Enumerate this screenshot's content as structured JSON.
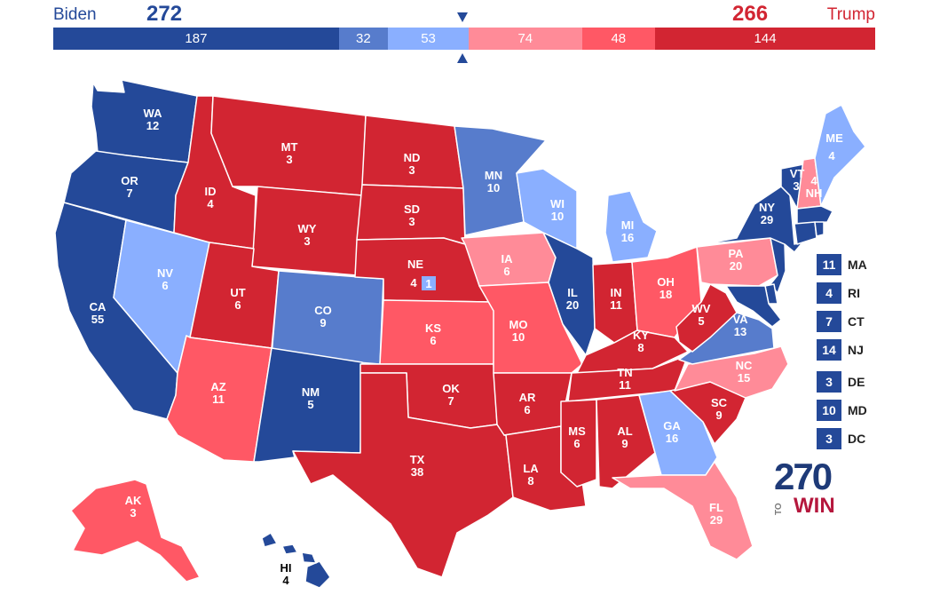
{
  "header": {
    "left_name": "Biden",
    "left_total": "272",
    "right_name": "Trump",
    "right_total": "266"
  },
  "bar_segments": [
    {
      "label": "187",
      "value": 187,
      "color": "#244999"
    },
    {
      "label": "32",
      "value": 32,
      "color": "#577ccc"
    },
    {
      "label": "53",
      "value": 53,
      "color": "#8aafff"
    },
    {
      "label": "74",
      "value": 74,
      "color": "#ff8b98"
    },
    {
      "label": "48",
      "value": 48,
      "color": "#ff5865"
    },
    {
      "label": "144",
      "value": 144,
      "color": "#d22532"
    }
  ],
  "rating_colors": {
    "safe_d": "#244999",
    "likely_d": "#577ccc",
    "lean_d": "#8aafff",
    "lean_r": "#ff8b98",
    "likely_r": "#ff5865",
    "safe_r": "#d22532"
  },
  "states": {
    "WA": {
      "abbr": "WA",
      "ev": "12"
    },
    "OR": {
      "abbr": "OR",
      "ev": "7"
    },
    "CA": {
      "abbr": "CA",
      "ev": "55"
    },
    "NV": {
      "abbr": "NV",
      "ev": "6"
    },
    "ID": {
      "abbr": "ID",
      "ev": "4"
    },
    "MT": {
      "abbr": "MT",
      "ev": "3"
    },
    "WY": {
      "abbr": "WY",
      "ev": "3"
    },
    "UT": {
      "abbr": "UT",
      "ev": "6"
    },
    "AZ": {
      "abbr": "AZ",
      "ev": "11"
    },
    "CO": {
      "abbr": "CO",
      "ev": "9"
    },
    "NM": {
      "abbr": "NM",
      "ev": "5"
    },
    "ND": {
      "abbr": "ND",
      "ev": "3"
    },
    "SD": {
      "abbr": "SD",
      "ev": "3"
    },
    "NE": {
      "abbr": "NE",
      "ev": "4",
      "district_ev": "1"
    },
    "KS": {
      "abbr": "KS",
      "ev": "6"
    },
    "OK": {
      "abbr": "OK",
      "ev": "7"
    },
    "TX": {
      "abbr": "TX",
      "ev": "38"
    },
    "MN": {
      "abbr": "MN",
      "ev": "10"
    },
    "IA": {
      "abbr": "IA",
      "ev": "6"
    },
    "MO": {
      "abbr": "MO",
      "ev": "10"
    },
    "AR": {
      "abbr": "AR",
      "ev": "6"
    },
    "LA": {
      "abbr": "LA",
      "ev": "8"
    },
    "WI": {
      "abbr": "WI",
      "ev": "10"
    },
    "IL": {
      "abbr": "IL",
      "ev": "20"
    },
    "MI": {
      "abbr": "MI",
      "ev": "16"
    },
    "IN": {
      "abbr": "IN",
      "ev": "11"
    },
    "OH": {
      "abbr": "OH",
      "ev": "18"
    },
    "KY": {
      "abbr": "KY",
      "ev": "8"
    },
    "TN": {
      "abbr": "TN",
      "ev": "11"
    },
    "MS": {
      "abbr": "MS",
      "ev": "6"
    },
    "AL": {
      "abbr": "AL",
      "ev": "9"
    },
    "GA": {
      "abbr": "GA",
      "ev": "16"
    },
    "FL": {
      "abbr": "FL",
      "ev": "29"
    },
    "SC": {
      "abbr": "SC",
      "ev": "9"
    },
    "NC": {
      "abbr": "NC",
      "ev": "15"
    },
    "VA": {
      "abbr": "VA",
      "ev": "13"
    },
    "WV": {
      "abbr": "WV",
      "ev": "5"
    },
    "PA": {
      "abbr": "PA",
      "ev": "20"
    },
    "NY": {
      "abbr": "NY",
      "ev": "29"
    },
    "VT": {
      "abbr": "VT",
      "ev": "3"
    },
    "NH": {
      "abbr": "NH",
      "ev": "4"
    },
    "ME": {
      "abbr": "ME",
      "ev": "4"
    },
    "AK": {
      "abbr": "AK",
      "ev": "3"
    },
    "HI": {
      "abbr": "HI",
      "ev": "4"
    }
  },
  "small_states": [
    {
      "abbr": "MA",
      "ev": "11"
    },
    {
      "abbr": "RI",
      "ev": "4"
    },
    {
      "abbr": "CT",
      "ev": "7"
    },
    {
      "abbr": "NJ",
      "ev": "14"
    },
    {
      "abbr": "DE",
      "ev": "3"
    },
    {
      "abbr": "MD",
      "ev": "10"
    },
    {
      "abbr": "DC",
      "ev": "3"
    }
  ],
  "logo": {
    "number": "270",
    "prefix": "TO",
    "word": "WIN"
  }
}
